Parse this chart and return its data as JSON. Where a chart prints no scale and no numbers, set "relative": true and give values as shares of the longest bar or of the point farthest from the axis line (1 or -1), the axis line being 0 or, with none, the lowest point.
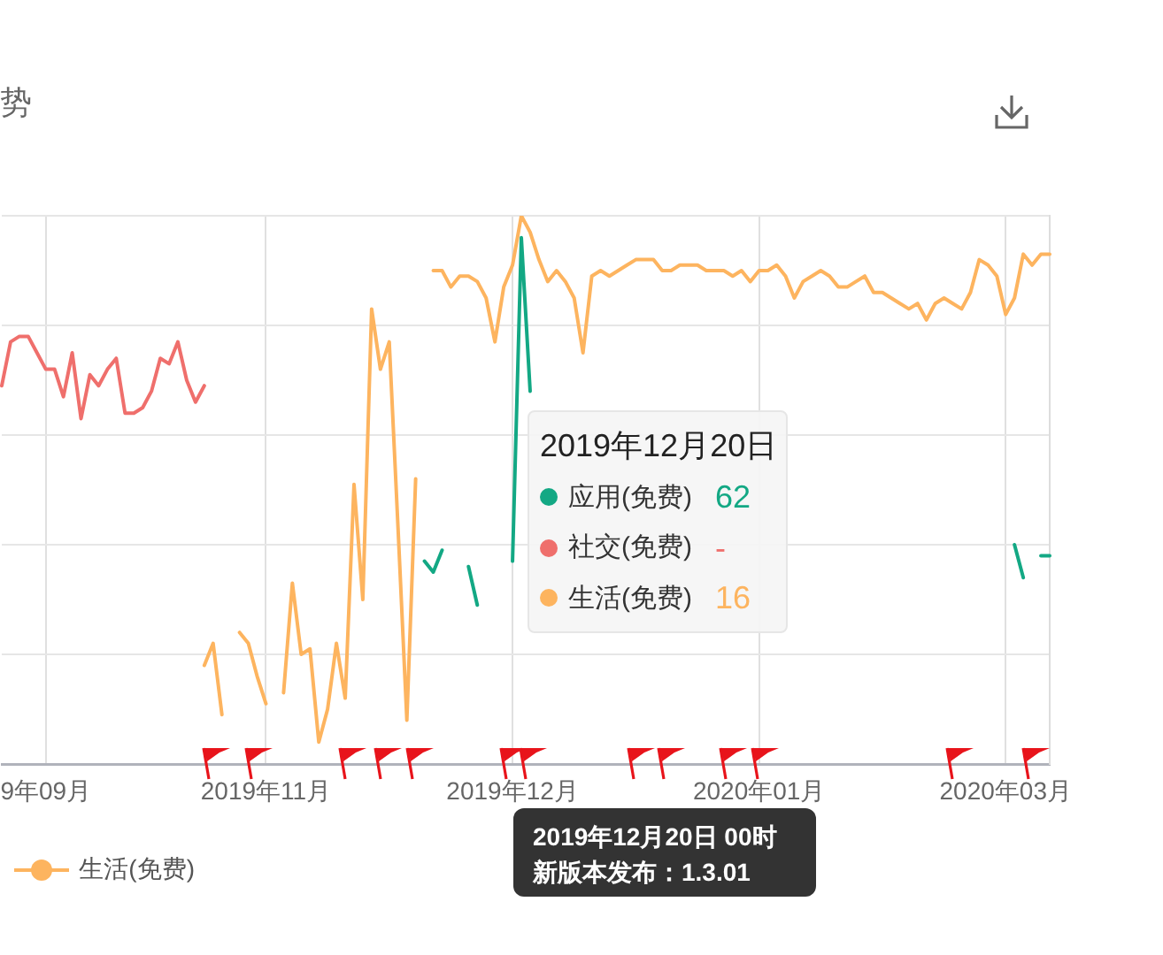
{
  "chart_data": {
    "type": "line",
    "title": "势",
    "relative": true,
    "grid": true,
    "legend": "bottom right",
    "categories": [
      null,
      null,
      null,
      null,
      null,
      "9年09月",
      null,
      null,
      null,
      null,
      null,
      null,
      null,
      null,
      null,
      null,
      null,
      null,
      null,
      null,
      null,
      null,
      null,
      null,
      null,
      null,
      null,
      null,
      null,
      null,
      "2019年11月",
      null,
      null,
      null,
      null,
      null,
      null,
      null,
      null,
      null,
      null,
      null,
      null,
      null,
      null,
      null,
      null,
      null,
      null,
      null,
      null,
      null,
      null,
      null,
      null,
      null,
      null,
      null,
      "2019年12月",
      null,
      null,
      null,
      null,
      null,
      null,
      null,
      null,
      null,
      null,
      null,
      null,
      null,
      null,
      null,
      null,
      null,
      null,
      null,
      null,
      null,
      null,
      null,
      null,
      null,
      null,
      null,
      "2020年01月",
      null,
      null,
      null,
      null,
      null,
      null,
      null,
      null,
      null,
      null,
      null,
      null,
      null,
      null,
      null,
      null,
      null,
      null,
      null,
      null,
      null,
      null,
      null,
      null,
      null,
      null,
      null,
      "2020年03月",
      null,
      null,
      null,
      null,
      null
    ],
    "series": [
      {
        "name": "应用(免费)",
        "color": "#13a884",
        "values": [
          null,
          null,
          null,
          null,
          null,
          null,
          null,
          null,
          null,
          null,
          null,
          null,
          null,
          null,
          null,
          null,
          null,
          null,
          null,
          null,
          null,
          null,
          null,
          null,
          null,
          null,
          null,
          null,
          null,
          null,
          null,
          null,
          null,
          null,
          null,
          null,
          null,
          null,
          null,
          null,
          null,
          null,
          null,
          null,
          null,
          null,
          null,
          null,
          0.37,
          0.35,
          0.39,
          null,
          null,
          0.36,
          0.29,
          null,
          null,
          null,
          0.37,
          0.96,
          0.68,
          null,
          null,
          null,
          null,
          null,
          null,
          null,
          null,
          null,
          null,
          null,
          null,
          null,
          null,
          null,
          null,
          null,
          null,
          null,
          null,
          null,
          null,
          null,
          null,
          null,
          null,
          null,
          null,
          null,
          null,
          null,
          null,
          null,
          null,
          null,
          null,
          null,
          null,
          null,
          null,
          null,
          null,
          null,
          null,
          null,
          null,
          null,
          null,
          null,
          null,
          null,
          null,
          null,
          null,
          0.4,
          0.34,
          null,
          0.38,
          0.38
        ]
      },
      {
        "name": "社交(免费)",
        "color": "#ef6f6c",
        "values": [
          0.69,
          0.77,
          0.78,
          0.78,
          0.75,
          0.72,
          0.72,
          0.67,
          0.75,
          0.63,
          0.71,
          0.69,
          0.72,
          0.74,
          0.64,
          0.64,
          0.65,
          0.68,
          0.74,
          0.73,
          0.77,
          0.7,
          0.66,
          0.69,
          null,
          null,
          null,
          null,
          null,
          null,
          null,
          null,
          null,
          null,
          null,
          null,
          null,
          null,
          null,
          null,
          null,
          null,
          null,
          null,
          null,
          null,
          null,
          null,
          null,
          null,
          null,
          null,
          null,
          null,
          null,
          null,
          null,
          null,
          null,
          null,
          null,
          null,
          null,
          null,
          null,
          null,
          null,
          null,
          null,
          null,
          null,
          null,
          null,
          null,
          null,
          null,
          null,
          null,
          null,
          null,
          null,
          null,
          null,
          null,
          null,
          null,
          null,
          null,
          null,
          null,
          null,
          null,
          null,
          null,
          null,
          null,
          null,
          null,
          null,
          null,
          null,
          null,
          null,
          null,
          null,
          null,
          null,
          null,
          null,
          null,
          null,
          null,
          null,
          null,
          null,
          null,
          null,
          null,
          null,
          null
        ]
      },
      {
        "name": "生活(免费)",
        "color": "#fdb45f",
        "values": [
          null,
          null,
          null,
          null,
          null,
          null,
          null,
          null,
          null,
          null,
          null,
          null,
          null,
          null,
          null,
          null,
          null,
          null,
          null,
          null,
          null,
          null,
          null,
          0.18,
          0.22,
          0.09,
          null,
          0.24,
          0.22,
          0.16,
          0.11,
          null,
          0.13,
          0.33,
          0.2,
          0.21,
          0.04,
          0.1,
          0.22,
          0.12,
          0.51,
          0.3,
          0.83,
          0.72,
          0.77,
          0.43,
          0.08,
          0.52,
          null,
          0.9,
          0.9,
          0.87,
          0.89,
          0.89,
          0.88,
          0.85,
          0.77,
          0.87,
          0.91,
          1,
          0.97,
          0.92,
          0.88,
          0.9,
          0.88,
          0.85,
          0.75,
          0.89,
          0.9,
          0.89,
          0.9,
          0.91,
          0.92,
          0.92,
          0.92,
          0.9,
          0.9,
          0.91,
          0.91,
          0.91,
          0.9,
          0.9,
          0.9,
          0.89,
          0.9,
          0.88,
          0.9,
          0.9,
          0.91,
          0.89,
          0.85,
          0.88,
          0.89,
          0.9,
          0.89,
          0.87,
          0.87,
          0.88,
          0.89,
          0.86,
          0.86,
          0.85,
          0.84,
          0.83,
          0.84,
          0.81,
          0.84,
          0.85,
          0.84,
          0.83,
          0.86,
          0.92,
          0.91,
          0.89,
          0.82,
          0.85,
          0.93,
          0.91,
          0.93,
          0.93
        ]
      }
    ],
    "annotations": [
      "2019年12月20日",
      "62",
      "-",
      "16",
      "2019年12月20日 00时",
      "新版本发布：1.3.01"
    ]
  }
}
